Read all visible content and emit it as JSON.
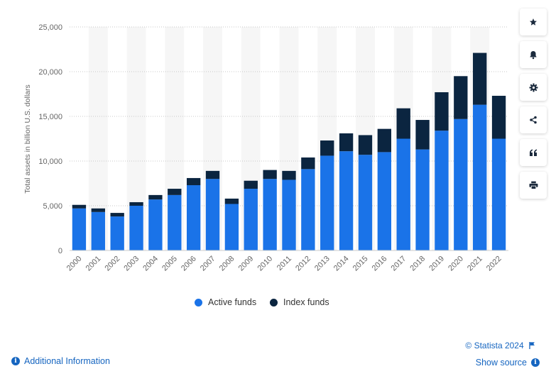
{
  "chart_data": {
    "type": "bar",
    "stacked": true,
    "categories": [
      "2000",
      "2001",
      "2002",
      "2003",
      "2004",
      "2005",
      "2006",
      "2007",
      "2008",
      "2009",
      "2010",
      "2011",
      "2012",
      "2013",
      "2014",
      "2015",
      "2016",
      "2017",
      "2018",
      "2019",
      "2020",
      "2021",
      "2022"
    ],
    "series": [
      {
        "name": "Active funds",
        "color": "#1a73e8",
        "values": [
          4700,
          4300,
          3800,
          5000,
          5700,
          6200,
          7300,
          8000,
          5200,
          6900,
          8000,
          7900,
          9100,
          10600,
          11100,
          10700,
          11000,
          12500,
          11300,
          13400,
          14700,
          16300,
          12500
        ]
      },
      {
        "name": "Index funds",
        "color": "#0b2540",
        "values": [
          400,
          400,
          400,
          400,
          500,
          700,
          800,
          900,
          600,
          900,
          1000,
          1000,
          1300,
          1700,
          2000,
          2200,
          2600,
          3400,
          3300,
          4300,
          4800,
          5800,
          4800
        ]
      }
    ],
    "ylabel": "Total assets in billion U.S. dollars",
    "ylim": [
      0,
      25000
    ],
    "yticks": [
      0,
      5000,
      10000,
      15000,
      20000,
      25000
    ],
    "ytick_labels": [
      "0",
      "5,000",
      "10,000",
      "15,000",
      "20,000",
      "25,000"
    ],
    "grid": true,
    "legend_position": "bottom-center"
  },
  "footer": {
    "credit": "© Statista 2024",
    "show_source": "Show source",
    "additional_info": "Additional Information"
  },
  "toolbar": {
    "icons": [
      "star-icon",
      "bell-icon",
      "gear-icon",
      "share-icon",
      "quote-icon",
      "print-icon"
    ]
  }
}
